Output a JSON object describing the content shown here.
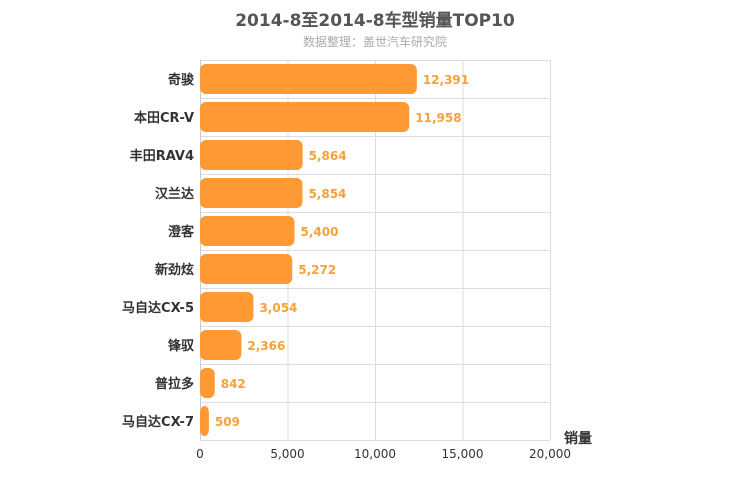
{
  "chart_data": {
    "type": "bar",
    "orientation": "horizontal",
    "title": "2014-8至2014-8车型销量TOP10",
    "subtitle": "数据整理：盖世汽车研究院",
    "xlabel": "销量",
    "ylabel": "",
    "categories": [
      "奇骏",
      "本田CR-V",
      "丰田RAV4",
      "汉兰达",
      "澄客",
      "新劲炫",
      "马自达CX-5",
      "锋驭",
      "普拉多",
      "马自达CX-7"
    ],
    "values": [
      12391,
      11958,
      5864,
      5854,
      5400,
      5272,
      3054,
      2366,
      842,
      509
    ],
    "value_labels": [
      "12,391",
      "11,958",
      "5,864",
      "5,854",
      "5,400",
      "5,272",
      "3,054",
      "2,366",
      "842",
      "509"
    ],
    "xlim": [
      0,
      20000
    ],
    "xticks": [
      0,
      5000,
      10000,
      15000,
      20000
    ],
    "xtick_labels": [
      "0",
      "5,000",
      "10,000",
      "15,000",
      "20,000"
    ],
    "grid": true,
    "bar_color": "#ff9933",
    "label_color": "#f5a23a"
  }
}
